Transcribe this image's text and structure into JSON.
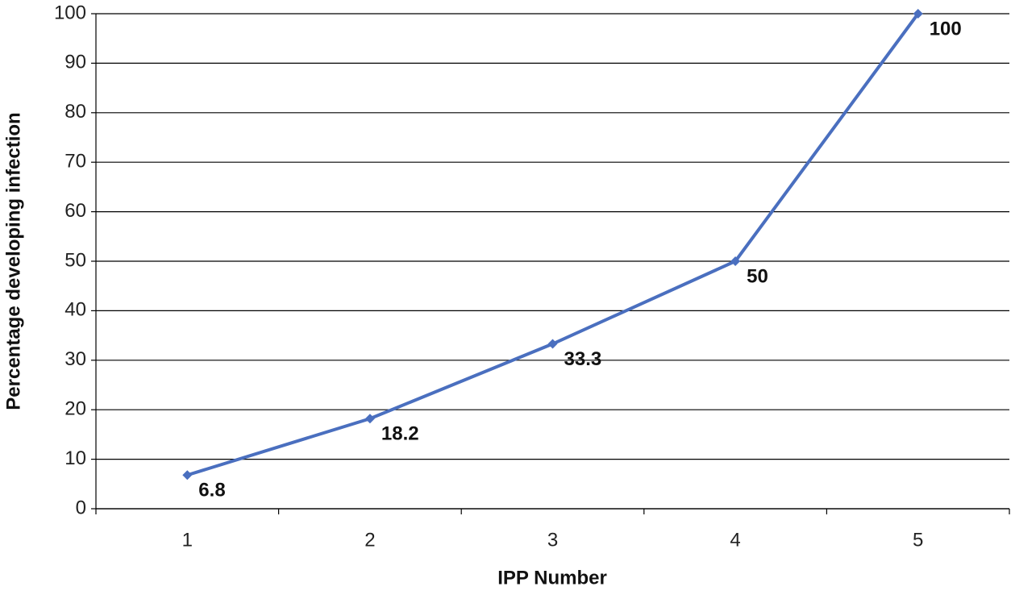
{
  "chart_data": {
    "type": "line",
    "x_label": "IPP Number",
    "y_label": "Percentage developing infection",
    "categories": [
      "1",
      "2",
      "3",
      "4",
      "5"
    ],
    "values": [
      6.8,
      18.2,
      33.3,
      50,
      100
    ],
    "color": "#4a6fbf",
    "data_labels": true,
    "ylim": [
      0,
      100
    ],
    "yticks": [
      0,
      10,
      20,
      30,
      40,
      50,
      60,
      70,
      80,
      90,
      100
    ],
    "grid": true
  }
}
